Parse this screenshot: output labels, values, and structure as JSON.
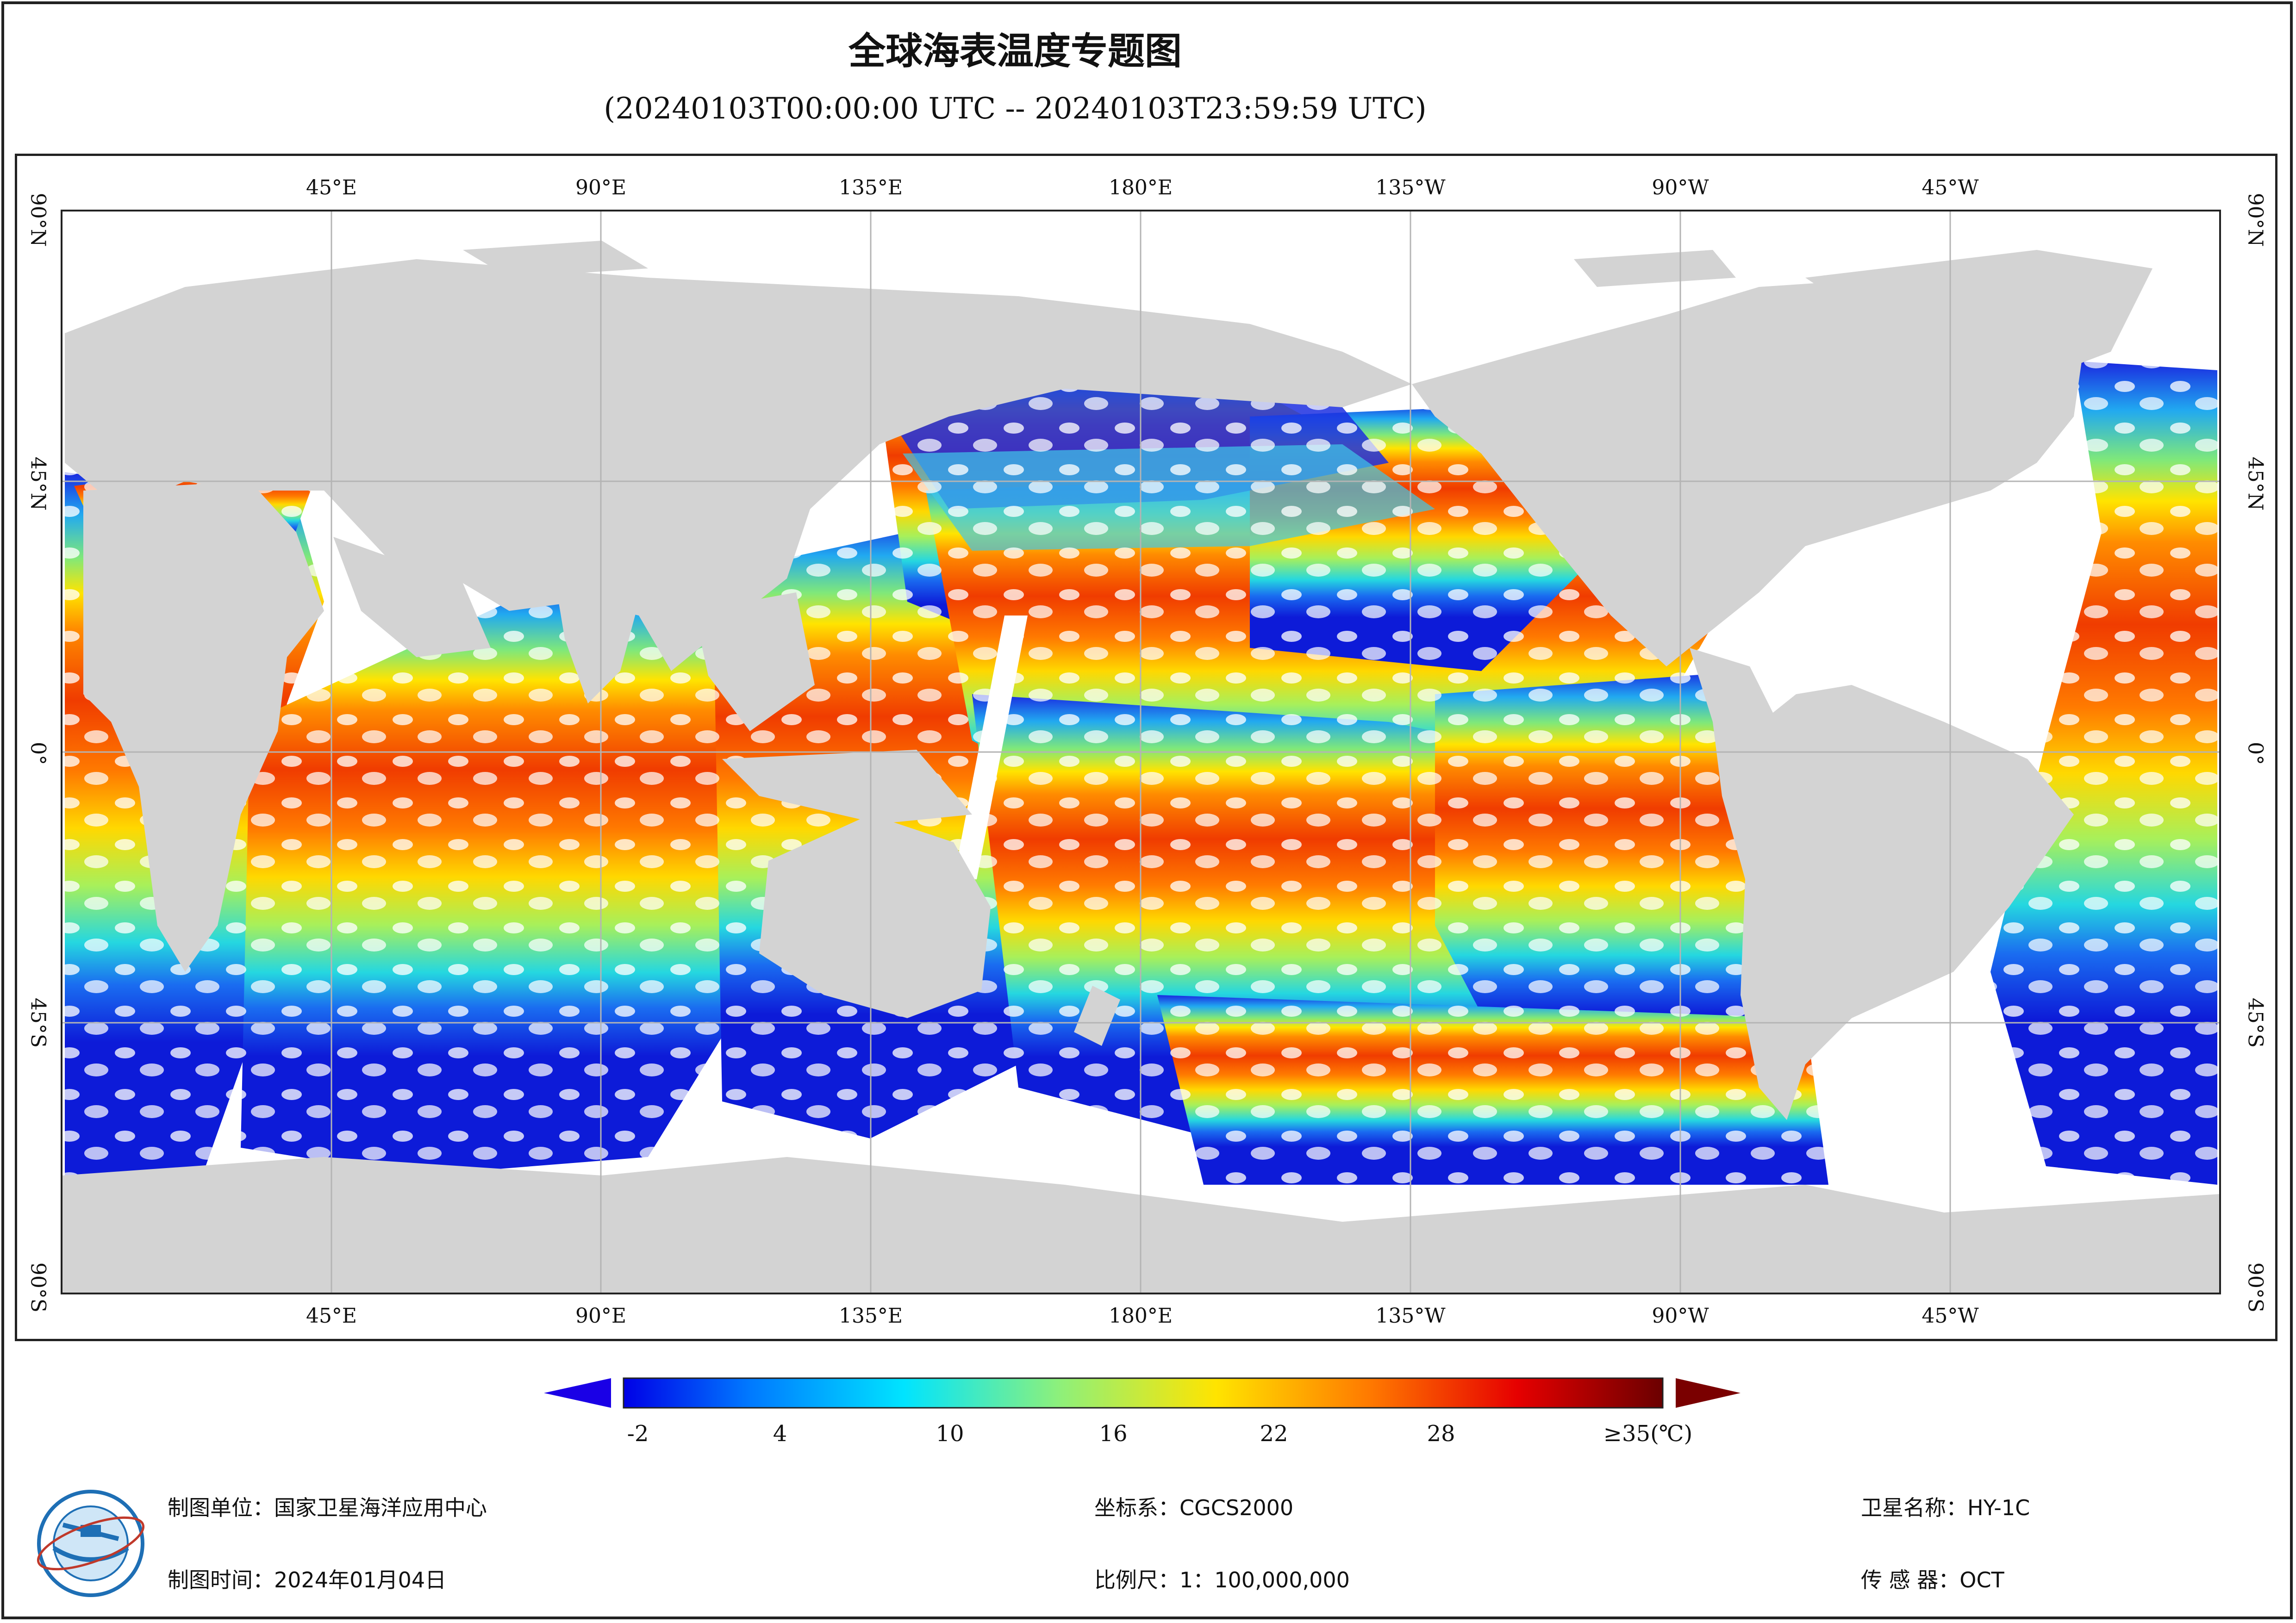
{
  "title": "全球海表温度专题图",
  "subtitle": "(20240103T00:00:00 UTC -- 20240103T23:59:59 UTC)",
  "axes": {
    "top": [
      "45°E",
      "90°E",
      "135°E",
      "180°E",
      "135°W",
      "90°W",
      "45°W"
    ],
    "bottom": [
      "45°E",
      "90°E",
      "135°E",
      "180°E",
      "135°W",
      "90°W",
      "45°W"
    ],
    "left": [
      "90°N",
      "45°N",
      "0°",
      "45°S",
      "90°S"
    ],
    "right": [
      "90°N",
      "45°N",
      "0°",
      "45°S",
      "90°S"
    ]
  },
  "colorbar": {
    "labels": [
      "-2",
      "4",
      "10",
      "16",
      "22",
      "28",
      "≥35(℃)"
    ],
    "colors": {
      "min": "#1a00e6",
      "max": "#7a0000",
      "land": "#d3d3d3",
      "nodata": "#ffffff",
      "grid": "#b4b4b4"
    }
  },
  "footer": {
    "unit": "制图单位：国家卫星海洋应用中心",
    "time": "制图时间：2024年01月04日",
    "crs": "坐标系：CGCS2000",
    "scale": "比例尺：1：100,000,000",
    "satellite": "卫星名称：HY-1C",
    "sensor": "传  感  器：OCT"
  },
  "logo_icon": "nsoas-logo-icon"
}
